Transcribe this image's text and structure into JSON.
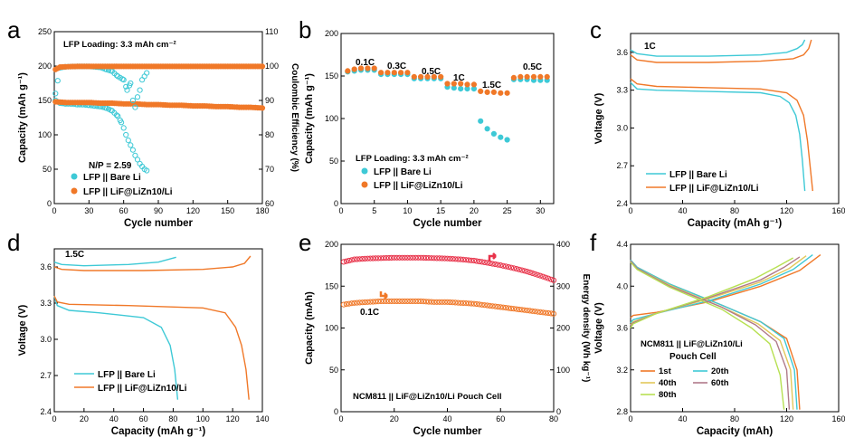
{
  "chart_data": [
    {
      "panel": "a",
      "type": "scatter",
      "annotations": [
        "LFP Loading: 3.3 mAh cm⁻²",
        "N/P = 2.59"
      ],
      "xlabel": "Cycle number",
      "ylabel": "Capacity (mAh g⁻¹)",
      "y2label": "Coulombic Efficiency (%)",
      "xlim": [
        0,
        180
      ],
      "ylim": [
        0,
        250
      ],
      "y2lim": [
        60,
        110
      ],
      "xticks": [
        "0",
        "30",
        "60",
        "90",
        "120",
        "150",
        "180"
      ],
      "yticks": [
        "0",
        "50",
        "100",
        "150",
        "200",
        "250"
      ],
      "y2ticks": [
        "60",
        "70",
        "80",
        "90",
        "100",
        "110"
      ],
      "legend": [
        "LFP || Bare Li",
        "LFP || LiF@LiZn10/Li"
      ],
      "legend_position": "bottom-right",
      "series": [
        {
          "name": "LFP || Bare Li",
          "color": "#3ec9d6",
          "axis": "left",
          "marker": "open-circle",
          "x": [
            1,
            5,
            10,
            15,
            20,
            25,
            30,
            35,
            40,
            45,
            50,
            55,
            58,
            60,
            62,
            64,
            66,
            68,
            70,
            72,
            74,
            76,
            78,
            80
          ],
          "y": [
            150,
            146,
            145,
            145,
            144,
            144,
            143,
            142,
            141,
            139,
            135,
            127,
            118,
            110,
            100,
            92,
            85,
            78,
            70,
            64,
            58,
            54,
            50,
            48
          ]
        },
        {
          "name": "LFP || LiF@LiZn10/Li",
          "color": "#f07828",
          "axis": "left",
          "marker": "filled-circle",
          "x": [
            1,
            10,
            20,
            30,
            40,
            50,
            60,
            70,
            80,
            90,
            100,
            110,
            120,
            130,
            140,
            150,
            160,
            170,
            180
          ],
          "y": [
            148,
            147,
            147,
            147,
            146,
            146,
            145,
            145,
            144,
            144,
            143,
            143,
            142,
            142,
            141,
            141,
            140,
            140,
            139
          ]
        },
        {
          "name": "LFP || Bare Li CE",
          "color": "#3ec9d6",
          "axis": "right",
          "marker": "open-circle",
          "x": [
            1,
            5,
            10,
            20,
            30,
            40,
            45,
            50,
            55,
            60,
            63,
            66,
            68,
            70,
            72,
            74,
            76,
            78,
            80
          ],
          "y": [
            92,
            99.5,
            99.8,
            99.9,
            99.9,
            99.6,
            99,
            98.5,
            97,
            96,
            93,
            95,
            90,
            88,
            91,
            93,
            96,
            97,
            98
          ]
        },
        {
          "name": "LFP || LiF@LiZn10/Li CE",
          "color": "#f07828",
          "axis": "right",
          "marker": "filled-circle",
          "x": [
            1,
            5,
            10,
            20,
            40,
            60,
            80,
            100,
            120,
            140,
            160,
            180
          ],
          "y": [
            99,
            99.7,
            99.8,
            99.9,
            99.9,
            99.9,
            99.9,
            99.9,
            99.9,
            99.9,
            99.9,
            99.9
          ]
        }
      ]
    },
    {
      "panel": "b",
      "type": "scatter",
      "annotations": [
        "0.1C",
        "0.3C",
        "0.5C",
        "1C",
        "1.5C",
        "0.5C",
        "LFP Loading: 3.3 mAh cm⁻²"
      ],
      "xlabel": "Cycle number",
      "ylabel": "Capacity (mAh g⁻¹)",
      "xlim": [
        0,
        32
      ],
      "ylim": [
        0,
        200
      ],
      "xticks": [
        "0",
        "5",
        "10",
        "15",
        "20",
        "25",
        "30"
      ],
      "yticks": [
        "0",
        "50",
        "100",
        "150",
        "200"
      ],
      "legend": [
        "LFP || Bare Li",
        "LFP || LiF@LiZn10/Li"
      ],
      "legend_position": "bottom-left",
      "series": [
        {
          "name": "LFP || Bare Li",
          "color": "#3ec9d6",
          "marker": "filled-circle",
          "x": [
            1,
            2,
            3,
            4,
            5,
            6,
            7,
            8,
            9,
            10,
            11,
            12,
            13,
            14,
            15,
            16,
            17,
            18,
            19,
            20,
            21,
            22,
            23,
            24,
            25,
            26,
            27,
            28,
            29,
            30,
            31
          ],
          "y": [
            155,
            156,
            157,
            157,
            157,
            152,
            152,
            152,
            152,
            152,
            147,
            147,
            147,
            147,
            147,
            137,
            136,
            135,
            135,
            135,
            97,
            88,
            82,
            78,
            75,
            146,
            146,
            146,
            145,
            145,
            145
          ]
        },
        {
          "name": "LFP || LiF@LiZn10/Li",
          "color": "#f07828",
          "marker": "filled-circle",
          "x": [
            1,
            2,
            3,
            4,
            5,
            6,
            7,
            8,
            9,
            10,
            11,
            12,
            13,
            14,
            15,
            16,
            17,
            18,
            19,
            20,
            21,
            22,
            23,
            24,
            25,
            26,
            27,
            28,
            29,
            30,
            31
          ],
          "y": [
            156,
            158,
            159,
            159,
            159,
            154,
            154,
            154,
            154,
            154,
            149,
            149,
            149,
            149,
            149,
            141,
            141,
            141,
            140,
            140,
            132,
            131,
            131,
            130,
            130,
            148,
            149,
            149,
            149,
            149,
            149
          ]
        }
      ]
    },
    {
      "panel": "c",
      "type": "line",
      "annotations": [
        "1C"
      ],
      "xlabel": "Capacity (mAh g⁻¹)",
      "ylabel": "Voltage (V)",
      "xlim": [
        0,
        160
      ],
      "ylim": [
        2.4,
        3.75
      ],
      "xticks": [
        "0",
        "40",
        "80",
        "120",
        "160"
      ],
      "yticks": [
        "2.4",
        "2.7",
        "3.0",
        "3.3",
        "3.6"
      ],
      "legend": [
        "LFP || Bare Li",
        "LFP || LiF@LiZn10/Li"
      ],
      "legend_position": "bottom-left",
      "series": [
        {
          "name": "LFP || Bare Li",
          "color": "#3ec9d6",
          "charge": {
            "x": [
              0,
              5,
              20,
              60,
              100,
              120,
              128,
              132,
              134
            ],
            "y": [
              3.62,
              3.59,
              3.57,
              3.57,
              3.58,
              3.6,
              3.63,
              3.66,
              3.7
            ]
          },
          "discharge": {
            "x": [
              0,
              5,
              20,
              60,
              100,
              115,
              122,
              127,
              130,
              132,
              134
            ],
            "y": [
              3.36,
              3.31,
              3.3,
              3.29,
              3.28,
              3.25,
              3.2,
              3.1,
              2.95,
              2.75,
              2.5
            ]
          }
        },
        {
          "name": "LFP || LiF@LiZn10/Li",
          "color": "#f07828",
          "charge": {
            "x": [
              0,
              5,
              20,
              60,
              100,
              125,
              133,
              137,
              139
            ],
            "y": [
              3.58,
              3.54,
              3.52,
              3.52,
              3.53,
              3.55,
              3.58,
              3.63,
              3.7
            ]
          },
          "discharge": {
            "x": [
              0,
              5,
              20,
              60,
              100,
              120,
              128,
              133,
              136,
              138,
              140
            ],
            "y": [
              3.39,
              3.35,
              3.33,
              3.32,
              3.31,
              3.28,
              3.22,
              3.1,
              2.9,
              2.7,
              2.5
            ]
          }
        }
      ]
    },
    {
      "panel": "d",
      "type": "line",
      "annotations": [
        "1.5C"
      ],
      "xlabel": "Capacity (mAh g⁻¹)",
      "ylabel": "Voltage (V)",
      "xlim": [
        0,
        140
      ],
      "ylim": [
        2.4,
        3.75
      ],
      "xticks": [
        "0",
        "20",
        "40",
        "60",
        "80",
        "100",
        "120",
        "140"
      ],
      "yticks": [
        "2.4",
        "2.7",
        "3.0",
        "3.3",
        "3.6"
      ],
      "legend": [
        "LFP || Bare Li",
        "LFP || LiF@LiZn10/Li"
      ],
      "legend_position": "bottom-left",
      "series": [
        {
          "name": "LFP || Bare Li",
          "color": "#3ec9d6",
          "charge": {
            "x": [
              0,
              5,
              20,
              50,
              70,
              82
            ],
            "y": [
              3.64,
              3.62,
              3.61,
              3.62,
              3.64,
              3.68
            ]
          },
          "discharge": {
            "x": [
              0,
              2,
              10,
              30,
              60,
              72,
              78,
              81,
              83
            ],
            "y": [
              3.36,
              3.28,
              3.24,
              3.22,
              3.18,
              3.1,
              2.95,
              2.75,
              2.5
            ]
          }
        },
        {
          "name": "LFP || LiF@LiZn10/Li",
          "color": "#f07828",
          "charge": {
            "x": [
              0,
              5,
              20,
              60,
              100,
              120,
              128,
              132
            ],
            "y": [
              3.6,
              3.58,
              3.57,
              3.57,
              3.58,
              3.6,
              3.63,
              3.69
            ]
          },
          "discharge": {
            "x": [
              0,
              2,
              10,
              50,
              100,
              115,
              122,
              126,
              129,
              131
            ],
            "y": [
              3.36,
              3.31,
              3.29,
              3.28,
              3.26,
              3.22,
              3.1,
              2.95,
              2.75,
              2.5
            ]
          }
        }
      ]
    },
    {
      "panel": "e",
      "type": "scatter",
      "annotations": [
        "0.1C",
        "NCM811 || LiF@LiZn10/Li Pouch Cell"
      ],
      "xlabel": "Cycle number",
      "ylabel": "Capacity (mAh)",
      "y2label": "Energy density (Wh kg⁻¹)",
      "xlim": [
        0,
        80
      ],
      "ylim": [
        0,
        200
      ],
      "y2lim": [
        0,
        400
      ],
      "xticks": [
        "0",
        "20",
        "40",
        "60",
        "80"
      ],
      "yticks": [
        "0",
        "50",
        "100",
        "150",
        "200"
      ],
      "y2ticks": [
        "0",
        "100",
        "200",
        "300",
        "400"
      ],
      "series": [
        {
          "name": "Capacity",
          "color": "#f07828",
          "axis": "left",
          "marker": "open-circle",
          "x": [
            1,
            5,
            10,
            15,
            20,
            25,
            30,
            35,
            40,
            45,
            50,
            55,
            60,
            65,
            70,
            75,
            80
          ],
          "y": [
            128,
            130,
            131,
            132,
            132,
            132,
            132,
            131,
            131,
            130,
            129,
            127,
            125,
            123,
            121,
            119,
            117
          ]
        },
        {
          "name": "Energy density",
          "color": "#e8334a",
          "axis": "right",
          "marker": "open-circle",
          "x": [
            1,
            5,
            10,
            15,
            20,
            25,
            30,
            35,
            40,
            45,
            50,
            55,
            60,
            65,
            70,
            75,
            80
          ],
          "y": [
            358,
            364,
            366,
            367,
            368,
            368,
            368,
            367,
            366,
            364,
            361,
            356,
            350,
            343,
            335,
            325,
            314
          ]
        }
      ]
    },
    {
      "panel": "f",
      "type": "line",
      "annotations": [
        "NCM811 || LiF@LiZn10/Li",
        "Pouch Cell"
      ],
      "xlabel": "Capacity (mAh)",
      "ylabel": "Voltage (V)",
      "xlim": [
        0,
        160
      ],
      "ylim": [
        2.8,
        4.4
      ],
      "xticks": [
        "0",
        "40",
        "80",
        "120",
        "160"
      ],
      "yticks": [
        "2.8",
        "3.2",
        "3.6",
        "4.0",
        "4.4"
      ],
      "legend": [
        "1st",
        "20th",
        "40th",
        "60th",
        "80th"
      ],
      "legend_position": "bottom-left",
      "series": [
        {
          "name": "1st",
          "color": "#f07828",
          "charge": {
            "x": [
              0,
              2,
              20,
              60,
              100,
              130,
              146
            ],
            "y": [
              3.7,
              3.72,
              3.75,
              3.85,
              4.0,
              4.15,
              4.3
            ]
          },
          "discharge": {
            "x": [
              0,
              5,
              30,
              70,
              100,
              120,
              128,
              130
            ],
            "y": [
              4.25,
              4.18,
              4.02,
              3.82,
              3.66,
              3.5,
              3.2,
              2.82
            ]
          }
        },
        {
          "name": "20th",
          "color": "#3ec9d6",
          "charge": {
            "x": [
              0,
              2,
              20,
              60,
              100,
              125,
              140
            ],
            "y": [
              3.65,
              3.68,
              3.74,
              3.86,
              4.02,
              4.16,
              4.3
            ]
          },
          "discharge": {
            "x": [
              0,
              5,
              30,
              70,
              100,
              118,
              126,
              128
            ],
            "y": [
              4.25,
              4.18,
              4.02,
              3.82,
              3.66,
              3.5,
              3.2,
              2.82
            ]
          }
        },
        {
          "name": "40th",
          "color": "#e3c85a",
          "charge": {
            "x": [
              0,
              2,
              20,
              60,
              100,
              122,
              135
            ],
            "y": [
              3.63,
              3.66,
              3.74,
              3.88,
              4.04,
              4.17,
              4.29
            ]
          },
          "discharge": {
            "x": [
              0,
              5,
              30,
              70,
              98,
              115,
              123,
              125
            ],
            "y": [
              4.24,
              4.17,
              4.01,
              3.8,
              3.64,
              3.48,
              3.2,
              2.82
            ]
          }
        },
        {
          "name": "60th",
          "color": "#b07a8a",
          "charge": {
            "x": [
              0,
              2,
              20,
              60,
              100,
              118,
              130
            ],
            "y": [
              3.62,
              3.65,
              3.74,
              3.89,
              4.06,
              4.18,
              4.28
            ]
          },
          "discharge": {
            "x": [
              0,
              5,
              30,
              70,
              96,
              112,
              120,
              122
            ],
            "y": [
              4.24,
              4.17,
              4.0,
              3.8,
              3.63,
              3.47,
              3.2,
              2.82
            ]
          }
        },
        {
          "name": "80th",
          "color": "#b7e052",
          "charge": {
            "x": [
              0,
              2,
              20,
              60,
              95,
              112,
              125
            ],
            "y": [
              3.6,
              3.64,
              3.74,
              3.9,
              4.07,
              4.18,
              4.27
            ]
          },
          "discharge": {
            "x": [
              0,
              5,
              30,
              70,
              93,
              107,
              115,
              118
            ],
            "y": [
              4.23,
              4.16,
              3.99,
              3.78,
              3.6,
              3.45,
              3.15,
              2.82
            ]
          }
        }
      ]
    }
  ]
}
